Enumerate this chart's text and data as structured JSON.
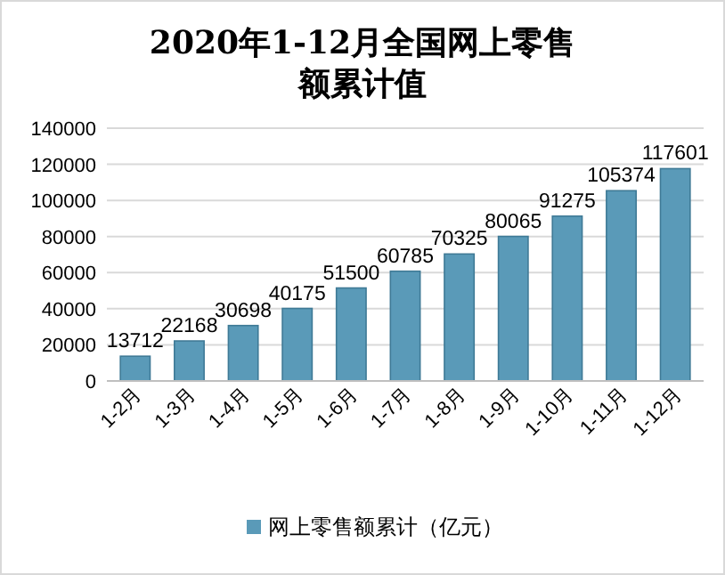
{
  "chart_data": {
    "type": "bar",
    "title": "2020年1-12月全国网上零售额累计值",
    "categories": [
      "1-2月",
      "1-3月",
      "1-4月",
      "1-5月",
      "1-6月",
      "1-7月",
      "1-8月",
      "1-9月",
      "1-10月",
      "1-11月",
      "1-12月"
    ],
    "series": [
      {
        "name": "网上零售额累计（亿元）",
        "color": "#5a9ab8",
        "values": [
          13712,
          22168,
          30698,
          40175,
          51500,
          60785,
          70325,
          80065,
          91275,
          105374,
          117601
        ]
      }
    ],
    "ylim": [
      0,
      140000
    ],
    "yticks": [
      0,
      20000,
      40000,
      60000,
      80000,
      100000,
      120000,
      140000
    ],
    "grid": "y",
    "data_labels": true,
    "legend": "bottom"
  }
}
